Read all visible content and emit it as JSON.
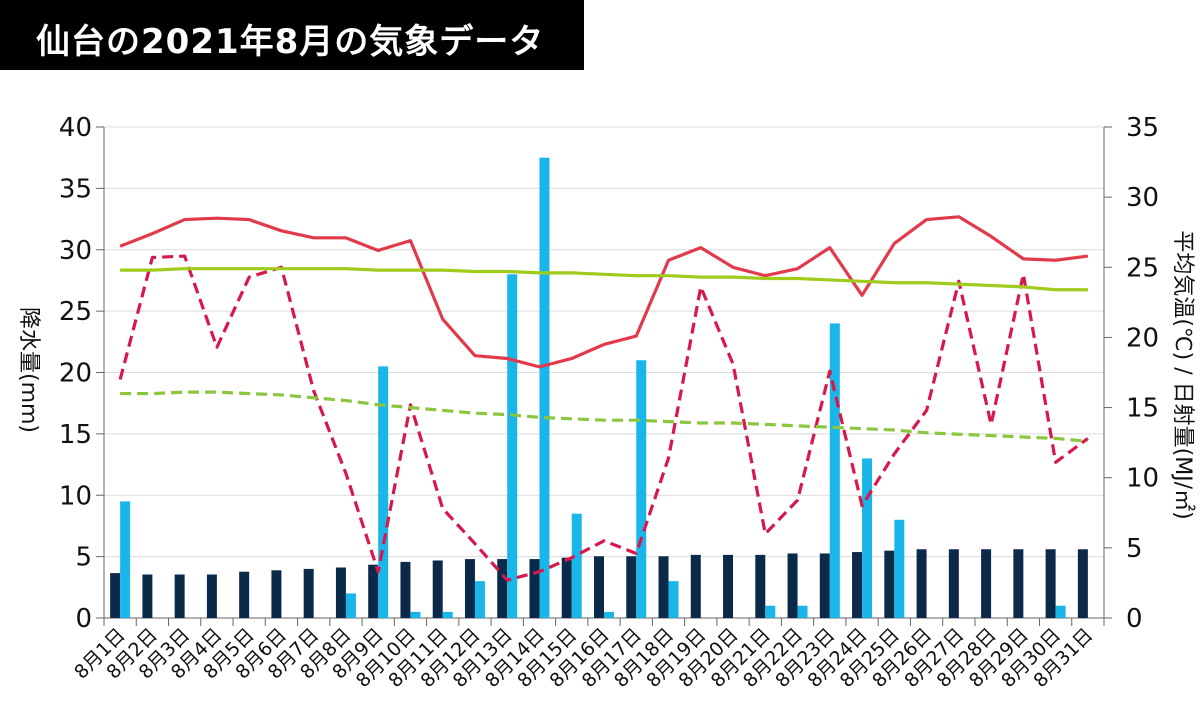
{
  "title": "仙台の2021年8月の気象データ",
  "chart_data": {
    "type": "bar+line",
    "title": "仙台の2021年8月の気象データ",
    "categories": [
      "8月1日",
      "8月2日",
      "8月3日",
      "8月4日",
      "8月5日",
      "8月6日",
      "8月7日",
      "8月8日",
      "8月9日",
      "8月10日",
      "8月11日",
      "8月12日",
      "8月13日",
      "8月14日",
      "8月15日",
      "8月16日",
      "8月17日",
      "8月18日",
      "8月19日",
      "8月20日",
      "8月21日",
      "8月22日",
      "8月23日",
      "8月24日",
      "8月25日",
      "8月26日",
      "8月27日",
      "8月28日",
      "8月29日",
      "8月30日",
      "8月31日"
    ],
    "y_left": {
      "label": "降水量(mm)",
      "min": 0,
      "max": 40,
      "ticks": [
        0,
        5,
        10,
        15,
        20,
        25,
        30,
        35,
        40
      ]
    },
    "y_right": {
      "label": "平均気温(℃) / 日射量(MJ/㎡)",
      "min": 0,
      "max": 35,
      "ticks": [
        0,
        5,
        10,
        15,
        20,
        25,
        30,
        35
      ]
    },
    "series": [
      {
        "type": "bar",
        "axis": "right",
        "color": "#0b2a4a",
        "values": [
          3.2,
          3.1,
          3.1,
          3.1,
          3.3,
          3.4,
          3.5,
          3.6,
          3.8,
          4.0,
          4.1,
          4.2,
          4.2,
          4.2,
          4.3,
          4.4,
          4.4,
          4.4,
          4.5,
          4.5,
          4.5,
          4.6,
          4.6,
          4.7,
          4.8,
          4.9,
          4.9,
          4.9,
          4.9,
          4.9,
          4.9
        ]
      },
      {
        "type": "bar",
        "axis": "left",
        "color": "#1ab6ea",
        "values": [
          9.5,
          0,
          0,
          0,
          0,
          0,
          0,
          2,
          20.5,
          0.5,
          0.5,
          3,
          28,
          37.5,
          8.5,
          0.5,
          21,
          3,
          0,
          0,
          1,
          1,
          24,
          13,
          8,
          0,
          0,
          0,
          0,
          1,
          0
        ]
      },
      {
        "type": "line",
        "axis": "right",
        "color": "#e23a4a",
        "dash": false,
        "values": [
          26.5,
          27.4,
          28.4,
          28.5,
          28.4,
          27.6,
          27.1,
          27.1,
          26.2,
          26.9,
          21.3,
          18.7,
          18.5,
          17.9,
          18.5,
          19.5,
          20.1,
          25.5,
          26.4,
          25.0,
          24.4,
          24.9,
          26.4,
          23.0,
          26.7,
          28.4,
          28.6,
          27.2,
          25.6,
          25.5,
          25.8
        ]
      },
      {
        "type": "line",
        "axis": "right",
        "color": "#d6194a",
        "dash": true,
        "values": [
          17.0,
          25.7,
          25.8,
          19.3,
          24.3,
          25.0,
          16.2,
          10.3,
          3.3,
          15.2,
          7.8,
          5.3,
          2.7,
          3.3,
          4.3,
          5.5,
          4.6,
          11.4,
          23.6,
          18.1,
          6.0,
          8.4,
          17.6,
          8.0,
          11.7,
          14.8,
          24.0,
          13.8,
          24.5,
          11.1,
          12.8
        ]
      },
      {
        "type": "line",
        "axis": "right",
        "color": "#9fcc1c",
        "dash": false,
        "values": [
          24.8,
          24.8,
          24.9,
          24.9,
          24.9,
          24.9,
          24.9,
          24.9,
          24.8,
          24.8,
          24.8,
          24.7,
          24.7,
          24.6,
          24.6,
          24.5,
          24.4,
          24.4,
          24.3,
          24.3,
          24.2,
          24.2,
          24.1,
          24.0,
          23.9,
          23.9,
          23.8,
          23.7,
          23.6,
          23.4,
          23.4
        ]
      },
      {
        "type": "line",
        "axis": "right",
        "color": "#8cc63f",
        "dash": true,
        "values": [
          16.0,
          16.0,
          16.1,
          16.1,
          16.0,
          15.9,
          15.7,
          15.5,
          15.2,
          15.0,
          14.8,
          14.6,
          14.5,
          14.3,
          14.2,
          14.1,
          14.1,
          14.0,
          13.9,
          13.9,
          13.8,
          13.7,
          13.6,
          13.5,
          13.4,
          13.2,
          13.1,
          13.0,
          12.9,
          12.8,
          12.6
        ]
      }
    ]
  }
}
